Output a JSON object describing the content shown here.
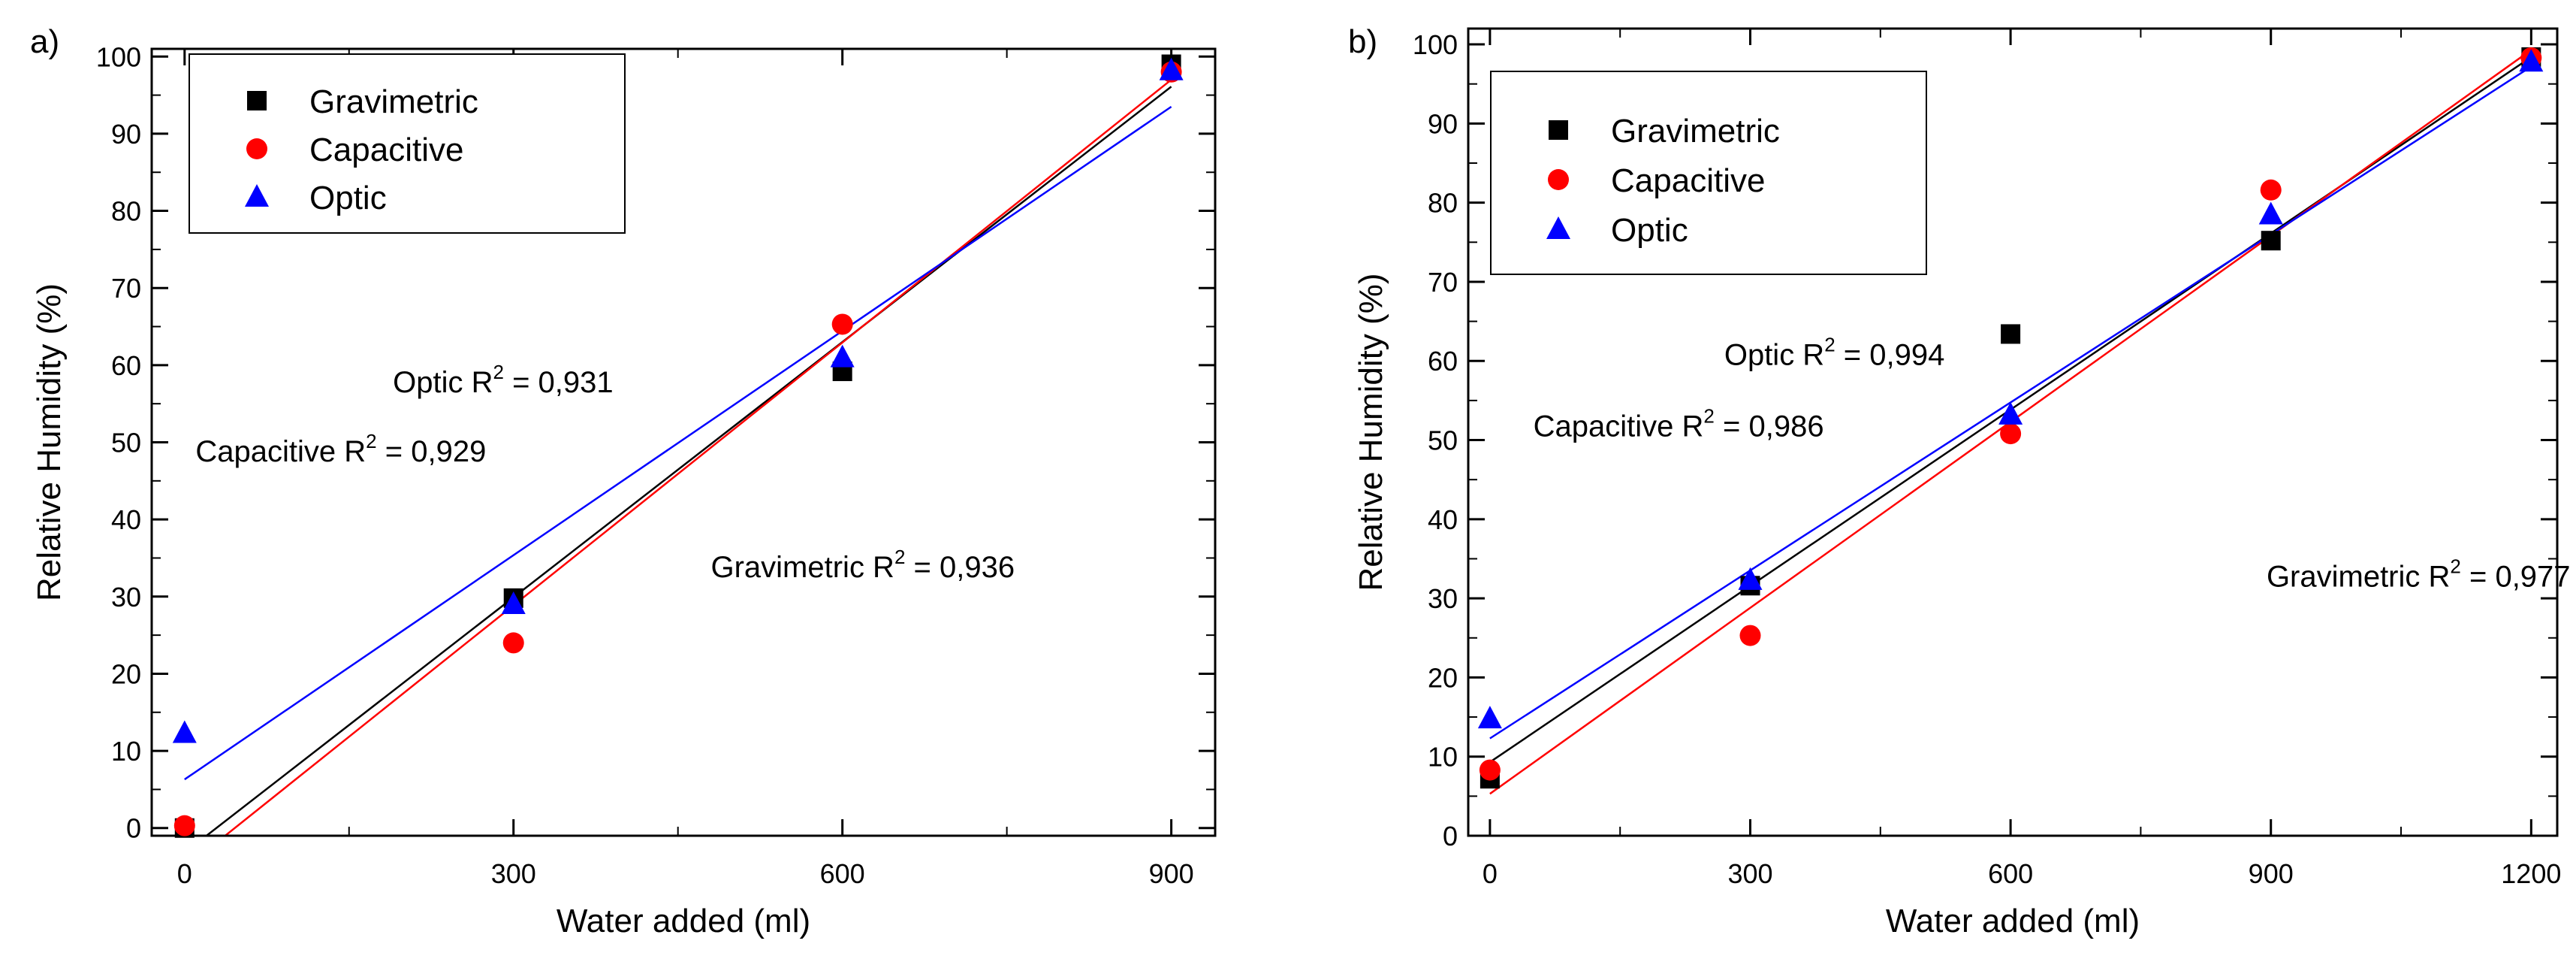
{
  "figure": {
    "background": "#ffffff"
  },
  "chart_data": [
    {
      "type": "scatter",
      "panel_label": "a)",
      "xlabel": "Water added (ml)",
      "ylabel": "Relative Humidity (%)",
      "xlim": [
        -30,
        940
      ],
      "ylim": [
        -1,
        101
      ],
      "xticks": [
        0,
        300,
        600,
        900
      ],
      "yticks": [
        0,
        10,
        20,
        30,
        40,
        50,
        60,
        70,
        80,
        90,
        100
      ],
      "legend": {
        "position": "top-left"
      },
      "series": [
        {
          "name": "Gravimetric",
          "marker": "square",
          "color": "#000000",
          "x": [
            0,
            300,
            600,
            900
          ],
          "y": [
            0,
            29.8,
            59.2,
            99
          ],
          "fit": {
            "x": [
              0,
              900
            ],
            "y": [
              -3.2,
              96.1
            ]
          }
        },
        {
          "name": "Capacitive",
          "marker": "circle",
          "color": "#ff0000",
          "x": [
            0,
            300,
            600,
            900
          ],
          "y": [
            0.3,
            24,
            65.3,
            98
          ],
          "fit": {
            "x": [
              0,
              900
            ],
            "y": [
              -5.2,
              97
            ]
          }
        },
        {
          "name": "Optic",
          "marker": "triangle",
          "color": "#0000ff",
          "x": [
            0,
            300,
            600,
            900
          ],
          "y": [
            12.3,
            29,
            61,
            98.2
          ],
          "fit": {
            "x": [
              0,
              900
            ],
            "y": [
              6.3,
              93.5
            ]
          }
        }
      ],
      "annotations": [
        {
          "name": "optic-r2",
          "prefix": "Optic R",
          "sup": "2",
          "suffix": " = 0,931",
          "x": 190,
          "y": 56.5
        },
        {
          "name": "capacitive-r2",
          "prefix": "Capacitive R",
          "sup": "2",
          "suffix": " = 0,929",
          "x": 10,
          "y": 47.5
        },
        {
          "name": "gravimetric-r2",
          "prefix": "Gravimetric R",
          "sup": "2",
          "suffix": " = 0,936",
          "x": 480,
          "y": 32.5
        }
      ]
    },
    {
      "type": "scatter",
      "panel_label": "b)",
      "xlabel": "Water added (ml)",
      "ylabel": "Relative Humidity (%)",
      "xlim": [
        -25,
        1230
      ],
      "ylim": [
        0,
        102
      ],
      "xticks": [
        0,
        300,
        600,
        900,
        1200
      ],
      "yticks": [
        0,
        10,
        20,
        30,
        40,
        50,
        60,
        70,
        80,
        90,
        100
      ],
      "legend": {
        "position": "top-left"
      },
      "series": [
        {
          "name": "Gravimetric",
          "marker": "square",
          "color": "#000000",
          "x": [
            0,
            300,
            600,
            900,
            1200
          ],
          "y": [
            7.2,
            31.6,
            63.4,
            75.2,
            98.4
          ],
          "fit": {
            "x": [
              0,
              1200
            ],
            "y": [
              9.3,
              98.4
            ]
          }
        },
        {
          "name": "Capacitive",
          "marker": "circle",
          "color": "#ff0000",
          "x": [
            0,
            300,
            600,
            900,
            1200
          ],
          "y": [
            8.3,
            25.3,
            50.8,
            81.6,
            98.3
          ],
          "fit": {
            "x": [
              0,
              1200
            ],
            "y": [
              5.3,
              99.3
            ]
          }
        },
        {
          "name": "Optic",
          "marker": "triangle",
          "color": "#0000ff",
          "x": [
            0,
            300,
            600,
            900,
            1200
          ],
          "y": [
            14.8,
            32.3,
            53.2,
            78.5,
            97.8
          ],
          "fit": {
            "x": [
              0,
              1200
            ],
            "y": [
              12.3,
              97.2
            ]
          }
        }
      ],
      "annotations": [
        {
          "name": "optic-r2",
          "prefix": "Optic R",
          "sup": "2",
          "suffix": " = 0,994",
          "x": 270,
          "y": 59.5
        },
        {
          "name": "capacitive-r2",
          "prefix": "Capacitive R",
          "sup": "2",
          "suffix": " = 0,986",
          "x": 50,
          "y": 50.5
        },
        {
          "name": "gravimetric-r2",
          "prefix": "Gravimetric R",
          "sup": "2",
          "suffix": " = 0,977",
          "x": 895,
          "y": 31.5
        }
      ]
    }
  ]
}
